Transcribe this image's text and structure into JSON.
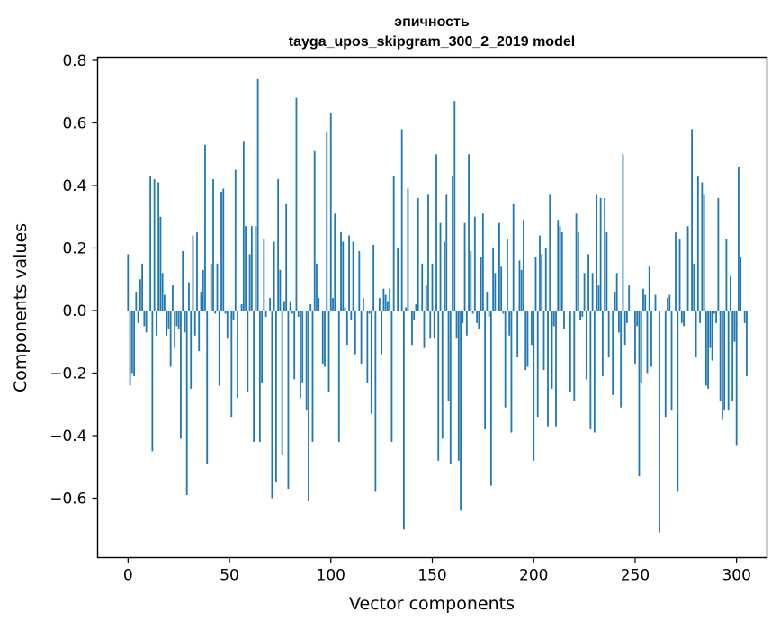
{
  "chart_data": {
    "type": "bar",
    "title_line1": "эпичность",
    "title_line2": "tayga_upos_skipgram_300_2_2019 model",
    "xlabel": "Vector components",
    "ylabel": "Components values",
    "xlim": [
      -15,
      315
    ],
    "ylim": [
      -0.79,
      0.81
    ],
    "xticks": [
      0,
      50,
      100,
      150,
      200,
      250,
      300
    ],
    "yticks": [
      -0.6,
      -0.4,
      -0.2,
      0.0,
      0.2,
      0.4,
      0.6,
      0.8
    ],
    "ytick_labels": [
      "−0.6",
      "−0.4",
      "−0.2",
      "0.0",
      "0.2",
      "0.4",
      "0.6",
      "0.8"
    ],
    "xtick_labels": [
      "0",
      "50",
      "100",
      "150",
      "200",
      "250",
      "300"
    ],
    "bar_color": "#1f77b4",
    "grid": false,
    "legend": "none",
    "values": [
      0.18,
      -0.24,
      -0.2,
      -0.21,
      0.06,
      -0.04,
      0.1,
      0.15,
      -0.05,
      -0.07,
      0.0,
      0.43,
      -0.45,
      0.42,
      -0.08,
      0.41,
      0.3,
      0.12,
      0.05,
      -0.08,
      -0.06,
      -0.18,
      0.08,
      -0.12,
      -0.05,
      -0.06,
      -0.41,
      0.19,
      -0.07,
      -0.59,
      0.09,
      -0.25,
      0.24,
      -0.08,
      0.25,
      -0.13,
      0.06,
      0.13,
      0.53,
      -0.49,
      0.0,
      0.15,
      0.42,
      -0.01,
      0.15,
      -0.24,
      0.38,
      0.39,
      -0.01,
      -0.09,
      0.0,
      -0.34,
      -0.03,
      0.45,
      -0.28,
      0.0,
      0.02,
      0.54,
      0.27,
      -0.26,
      0.18,
      0.27,
      -0.42,
      0.27,
      0.74,
      -0.42,
      -0.23,
      0.23,
      -0.02,
      0.0,
      0.04,
      -0.6,
      0.22,
      -0.55,
      0.42,
      0.13,
      -0.46,
      0.03,
      0.34,
      -0.57,
      0.03,
      -0.01,
      -0.22,
      0.68,
      -0.02,
      -0.28,
      -0.23,
      0.0,
      -0.32,
      -0.61,
      0.02,
      -0.42,
      0.51,
      0.15,
      0.04,
      0.0,
      -0.17,
      -0.18,
      0.57,
      -0.26,
      0.63,
      0.04,
      0.31,
      0.0,
      -0.42,
      0.25,
      0.22,
      0.01,
      -0.11,
      0.24,
      -0.03,
      0.22,
      -0.14,
      0.0,
      0.19,
      -0.17,
      0.04,
      0.0,
      -0.23,
      -0.01,
      -0.33,
      0.21,
      -0.58,
      0.0,
      0.04,
      -0.14,
      0.07,
      0.05,
      0.03,
      0.07,
      -0.42,
      0.43,
      0.0,
      0.2,
      0.0,
      0.58,
      -0.7,
      0.01,
      0.39,
      0.0,
      -0.11,
      -0.03,
      0.02,
      0.36,
      0.0,
      0.15,
      -0.12,
      0.08,
      0.37,
      -0.09,
      0.15,
      -0.09,
      0.5,
      -0.48,
      0.28,
      -0.41,
      0.22,
      0.37,
      -0.29,
      -0.49,
      0.43,
      0.67,
      -0.09,
      -0.48,
      -0.64,
      -0.04,
      0.28,
      -0.08,
      0.5,
      0.19,
      -0.01,
      0.3,
      -0.04,
      -0.06,
      0.17,
      0.31,
      -0.38,
      0.06,
      -0.02,
      -0.56,
      0.2,
      0.12,
      0.0,
      0.28,
      0.14,
      -0.01,
      -0.31,
      0.23,
      -0.08,
      -0.39,
      0.34,
      0.0,
      -0.15,
      0.16,
      0.13,
      0.29,
      -0.19,
      -0.18,
      0.0,
      -0.11,
      -0.48,
      0.17,
      -0.34,
      0.24,
      0.18,
      -0.19,
      0.2,
      -0.37,
      0.37,
      -0.25,
      -0.05,
      -0.37,
      0.29,
      0.27,
      0.25,
      -0.06,
      0.0,
      0.0,
      -0.26,
      0.0,
      -0.29,
      0.31,
      0.25,
      -0.03,
      -0.02,
      0.12,
      -0.22,
      0.18,
      -0.38,
      0.12,
      -0.39,
      0.37,
      0.08,
      0.36,
      -0.21,
      0.36,
      0.25,
      -0.15,
      0.0,
      -0.27,
      0.06,
      0.12,
      -0.07,
      -0.31,
      0.5,
      -0.11,
      -0.04,
      0.08,
      0.0,
      0.0,
      -0.17,
      -0.05,
      -0.53,
      -0.23,
      0.07,
      0.05,
      -0.2,
      0.14,
      -0.18,
      0.0,
      0.05,
      0.0,
      -0.71,
      0.0,
      0.0,
      -0.34,
      0.04,
      0.05,
      -0.32,
      0.0,
      0.25,
      -0.58,
      0.23,
      -0.04,
      -0.05,
      0.0,
      0.27,
      0.0,
      0.58,
      0.15,
      -0.15,
      0.43,
      -0.04,
      0.41,
      0.37,
      -0.24,
      -0.25,
      -0.12,
      -0.16,
      -0.01,
      -0.04,
      0.36,
      -0.29,
      -0.35,
      -0.32,
      0.23,
      -0.32,
      0.11,
      -0.29,
      -0.1,
      -0.43,
      0.46,
      0.17,
      0.0,
      -0.04,
      -0.21
    ]
  }
}
